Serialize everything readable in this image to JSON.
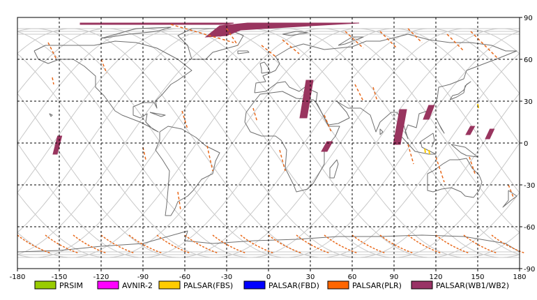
{
  "map": {
    "x_ticks": [
      {
        "value": -180,
        "label": "-180"
      },
      {
        "value": -150,
        "label": "-150"
      },
      {
        "value": -120,
        "label": "-120"
      },
      {
        "value": -90,
        "label": "-90"
      },
      {
        "value": -60,
        "label": "-60"
      },
      {
        "value": -30,
        "label": "-30"
      },
      {
        "value": 0,
        "label": "0"
      },
      {
        "value": 30,
        "label": "30"
      },
      {
        "value": 60,
        "label": "60"
      },
      {
        "value": 90,
        "label": "90"
      },
      {
        "value": 120,
        "label": "120"
      },
      {
        "value": 150,
        "label": "150"
      },
      {
        "value": 180,
        "label": "180"
      }
    ],
    "y_ticks": [
      {
        "value": 90,
        "label": "90"
      },
      {
        "value": 60,
        "label": "60"
      },
      {
        "value": 30,
        "label": "30"
      },
      {
        "value": 0,
        "label": "0"
      },
      {
        "value": -30,
        "label": "-30"
      },
      {
        "value": -60,
        "label": "-60"
      },
      {
        "value": -90,
        "label": "-90"
      }
    ],
    "lon_range": [
      -180,
      180
    ],
    "lat_range": [
      -90,
      90
    ],
    "grid": "dashed",
    "colors": {
      "grid": "#000000",
      "coast": "#6e6e6e",
      "orbit": "#c8c8c8",
      "wb": "#99355f",
      "plr": "#e8681a",
      "fbs": "#ffcc00"
    }
  },
  "legend": [
    {
      "label": "PRSIM",
      "color": "#99cc00"
    },
    {
      "label": "AVNIR-2",
      "color": "#ff00ff"
    },
    {
      "label": "PALSAR(FBS)",
      "color": "#ffcc00"
    },
    {
      "label": "PALSAR(FBD)",
      "color": "#0000ff"
    },
    {
      "label": "PALSAR(PLR)",
      "color": "#ff6600"
    },
    {
      "label": "PALSAR(WB1/WB2)",
      "color": "#993366"
    }
  ],
  "wb_swaths": [
    {
      "lon": -153,
      "lat": 0,
      "lat2": 5,
      "lon2": -150,
      "w": 3,
      "latA": -8,
      "latB": 5
    },
    {
      "lon": 25,
      "latA": 18,
      "latB": 45,
      "w": 5
    },
    {
      "lon": 40,
      "latA": -6,
      "latB": 1,
      "w": 4
    },
    {
      "lon": 92,
      "latA": -1,
      "latB": 24,
      "w": 5
    },
    {
      "lon": 113,
      "latA": 17,
      "latB": 27,
      "w": 4
    },
    {
      "lon": 143,
      "latA": 6,
      "latB": 12,
      "w": 3
    },
    {
      "lon": 157,
      "latA": 3,
      "latB": 10,
      "w": 3
    }
  ]
}
